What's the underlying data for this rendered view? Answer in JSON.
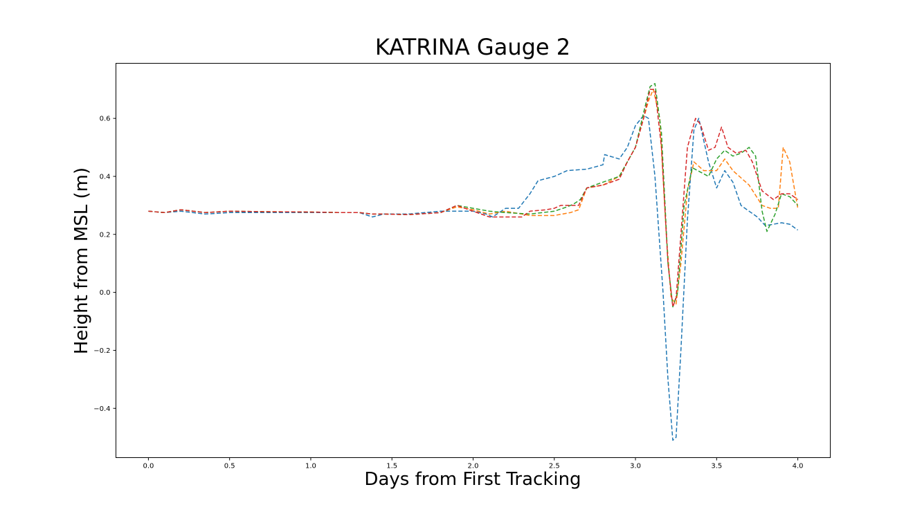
{
  "chart_data": {
    "type": "line",
    "title": "KATRINA Gauge 2",
    "xlabel": "Days from First Tracking",
    "ylabel": "Height from MSL (m)",
    "xlim": [
      -0.2,
      4.2
    ],
    "ylim": [
      -0.57,
      0.79
    ],
    "xticks": [
      "0.0",
      "0.5",
      "1.0",
      "1.5",
      "2.0",
      "2.5",
      "3.0",
      "3.5",
      "4.0"
    ],
    "yticks": [
      "−0.4",
      "−0.2",
      "0.0",
      "0.2",
      "0.4",
      "0.6"
    ],
    "grid": false,
    "line_style": "dashed",
    "series": [
      {
        "color": "#1f77b4",
        "x": [
          0.0,
          0.1,
          0.2,
          0.35,
          0.5,
          0.75,
          1.0,
          1.2,
          1.3,
          1.38,
          1.45,
          1.6,
          1.8,
          2.0,
          2.08,
          2.12,
          2.2,
          2.28,
          2.35,
          2.4,
          2.5,
          2.58,
          2.7,
          2.8,
          2.81,
          2.9,
          2.95,
          3.0,
          3.05,
          3.08,
          3.12,
          3.17,
          3.2,
          3.23,
          3.25,
          3.28,
          3.32,
          3.36,
          3.39,
          3.45,
          3.5,
          3.55,
          3.6,
          3.65,
          3.7,
          3.75,
          3.8,
          3.85,
          3.9,
          3.95,
          4.0
        ],
        "y": [
          0.28,
          0.275,
          0.28,
          0.27,
          0.275,
          0.275,
          0.275,
          0.275,
          0.275,
          0.26,
          0.27,
          0.27,
          0.28,
          0.28,
          0.27,
          0.26,
          0.29,
          0.29,
          0.34,
          0.385,
          0.4,
          0.42,
          0.425,
          0.44,
          0.475,
          0.46,
          0.5,
          0.575,
          0.61,
          0.6,
          0.4,
          0.0,
          -0.3,
          -0.51,
          -0.5,
          -0.2,
          0.25,
          0.56,
          0.6,
          0.45,
          0.36,
          0.42,
          0.38,
          0.3,
          0.28,
          0.26,
          0.23,
          0.235,
          0.24,
          0.235,
          0.215
        ]
      },
      {
        "color": "#ff7f0e",
        "x": [
          0.0,
          0.1,
          0.2,
          0.35,
          0.5,
          0.75,
          1.0,
          1.2,
          1.3,
          1.38,
          1.45,
          1.6,
          1.8,
          1.9,
          2.0,
          2.1,
          2.2,
          2.35,
          2.5,
          2.6,
          2.65,
          2.7,
          2.8,
          2.9,
          2.95,
          3.0,
          3.05,
          3.08,
          3.11,
          3.15,
          3.19,
          3.22,
          3.25,
          3.28,
          3.32,
          3.36,
          3.42,
          3.5,
          3.55,
          3.6,
          3.7,
          3.78,
          3.83,
          3.88,
          3.91,
          3.95,
          4.0
        ],
        "y": [
          0.28,
          0.275,
          0.285,
          0.275,
          0.28,
          0.278,
          0.277,
          0.275,
          0.275,
          0.27,
          0.27,
          0.268,
          0.275,
          0.295,
          0.285,
          0.27,
          0.28,
          0.265,
          0.265,
          0.275,
          0.285,
          0.36,
          0.37,
          0.4,
          0.45,
          0.5,
          0.6,
          0.66,
          0.7,
          0.6,
          0.2,
          -0.02,
          -0.04,
          0.1,
          0.35,
          0.45,
          0.42,
          0.42,
          0.46,
          0.42,
          0.37,
          0.3,
          0.29,
          0.29,
          0.5,
          0.45,
          0.29
        ]
      },
      {
        "color": "#2ca02c",
        "x": [
          0.0,
          0.1,
          0.2,
          0.35,
          0.5,
          0.75,
          1.0,
          1.2,
          1.3,
          1.38,
          1.45,
          1.6,
          1.8,
          1.9,
          2.0,
          2.1,
          2.2,
          2.35,
          2.5,
          2.58,
          2.62,
          2.66,
          2.7,
          2.8,
          2.9,
          2.95,
          3.0,
          3.05,
          3.09,
          3.12,
          3.16,
          3.2,
          3.23,
          3.26,
          3.3,
          3.35,
          3.45,
          3.5,
          3.55,
          3.6,
          3.65,
          3.7,
          3.74,
          3.78,
          3.81,
          3.86,
          3.9,
          3.95,
          4.0
        ],
        "y": [
          0.28,
          0.275,
          0.285,
          0.275,
          0.28,
          0.278,
          0.277,
          0.275,
          0.275,
          0.27,
          0.27,
          0.268,
          0.275,
          0.3,
          0.29,
          0.28,
          0.275,
          0.27,
          0.28,
          0.295,
          0.305,
          0.32,
          0.36,
          0.38,
          0.4,
          0.45,
          0.5,
          0.62,
          0.71,
          0.72,
          0.55,
          0.1,
          -0.05,
          0.0,
          0.3,
          0.43,
          0.4,
          0.46,
          0.49,
          0.47,
          0.48,
          0.5,
          0.47,
          0.28,
          0.21,
          0.27,
          0.34,
          0.33,
          0.3
        ]
      },
      {
        "color": "#d62728",
        "x": [
          0.0,
          0.1,
          0.2,
          0.35,
          0.5,
          0.75,
          1.0,
          1.2,
          1.3,
          1.38,
          1.45,
          1.6,
          1.8,
          1.9,
          2.0,
          2.1,
          2.2,
          2.3,
          2.35,
          2.45,
          2.5,
          2.54,
          2.6,
          2.65,
          2.7,
          2.8,
          2.9,
          2.95,
          3.0,
          3.05,
          3.09,
          3.12,
          3.16,
          3.2,
          3.23,
          3.25,
          3.28,
          3.32,
          3.37,
          3.4,
          3.45,
          3.49,
          3.53,
          3.57,
          3.62,
          3.68,
          3.72,
          3.78,
          3.85,
          3.9,
          3.95,
          4.0
        ],
        "y": [
          0.28,
          0.275,
          0.285,
          0.275,
          0.28,
          0.278,
          0.277,
          0.275,
          0.275,
          0.27,
          0.27,
          0.268,
          0.275,
          0.3,
          0.28,
          0.26,
          0.26,
          0.26,
          0.28,
          0.285,
          0.29,
          0.3,
          0.3,
          0.3,
          0.36,
          0.37,
          0.39,
          0.45,
          0.5,
          0.6,
          0.7,
          0.7,
          0.5,
          0.1,
          -0.05,
          -0.02,
          0.2,
          0.5,
          0.6,
          0.58,
          0.49,
          0.5,
          0.57,
          0.5,
          0.48,
          0.49,
          0.45,
          0.35,
          0.32,
          0.34,
          0.34,
          0.32
        ]
      }
    ]
  }
}
